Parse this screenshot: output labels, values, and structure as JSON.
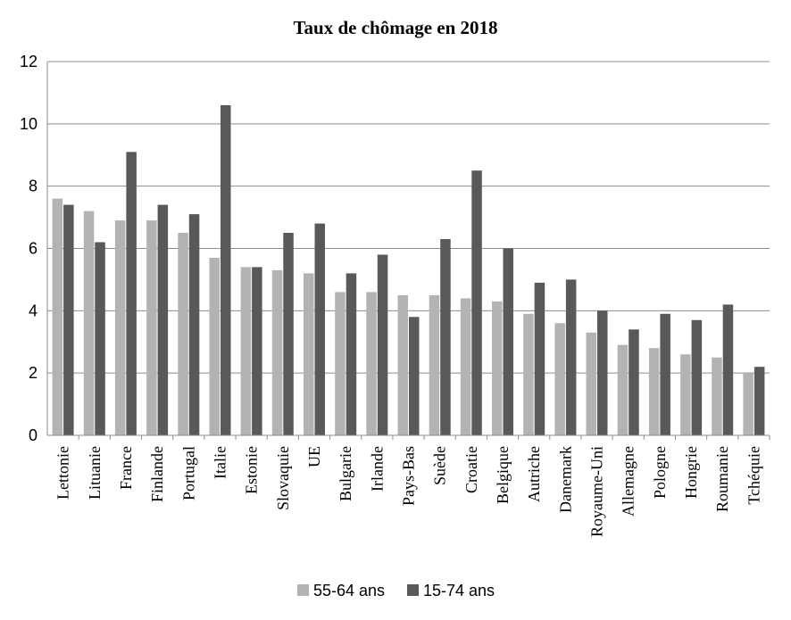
{
  "chart_data": {
    "type": "bar",
    "title": "Taux de chômage en 2018",
    "xlabel": "",
    "ylabel": "",
    "ylim": [
      0,
      12
    ],
    "yticks": [
      0,
      2,
      4,
      6,
      8,
      10,
      12
    ],
    "grid": true,
    "legend_position": "bottom",
    "categories": [
      "Lettonie",
      "Lituanie",
      "France",
      "Finlande",
      "Portugal",
      "Italie",
      "Estonie",
      "Slovaquie",
      "UE",
      "Bulgarie",
      "Irlande",
      "Pays-Bas",
      "Suède",
      "Croatie",
      "Belgique",
      "Autriche",
      "Danemark",
      "Royaume-Uni",
      "Allemagne",
      "Pologne",
      "Hongrie",
      "Roumanie",
      "Tchéquie"
    ],
    "series": [
      {
        "name": "55-64 ans",
        "color": "#b3b3b3",
        "values": [
          7.6,
          7.2,
          6.9,
          6.9,
          6.5,
          5.7,
          5.4,
          5.3,
          5.2,
          4.6,
          4.6,
          4.5,
          4.5,
          4.4,
          4.3,
          3.9,
          3.6,
          3.3,
          2.9,
          2.8,
          2.6,
          2.5,
          2.0
        ]
      },
      {
        "name": "15-74 ans",
        "color": "#595959",
        "values": [
          7.4,
          6.2,
          9.1,
          7.4,
          7.1,
          10.6,
          5.4,
          6.5,
          6.8,
          5.2,
          5.8,
          3.8,
          6.3,
          8.5,
          6.0,
          4.9,
          5.0,
          4.0,
          3.4,
          3.9,
          3.7,
          4.2,
          2.2
        ]
      }
    ]
  }
}
